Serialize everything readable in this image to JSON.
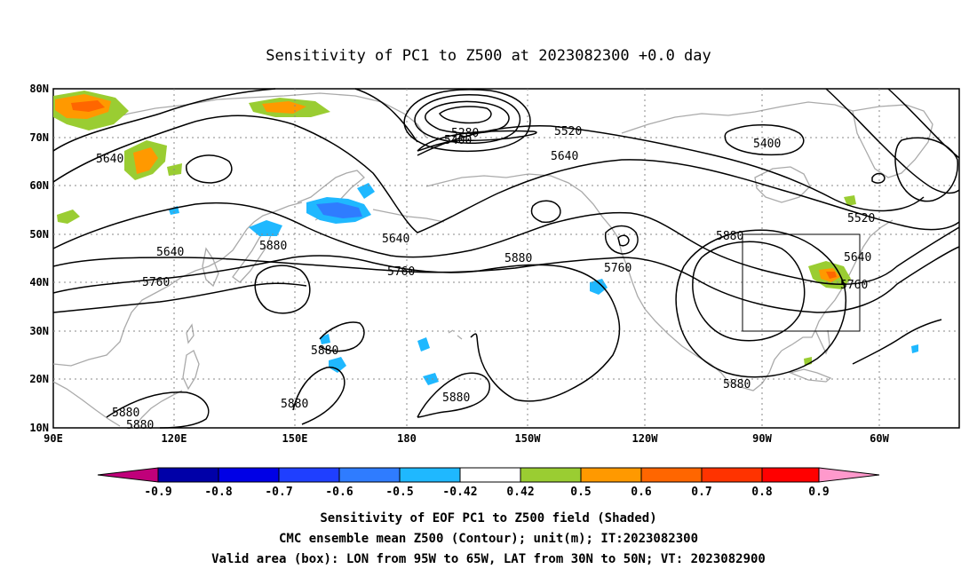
{
  "title": "Sensitivity of PC1 to Z500 at 2023082300 +0.0 day",
  "map": {
    "lat_labels": [
      "80N",
      "70N",
      "60N",
      "50N",
      "40N",
      "30N",
      "20N",
      "10N"
    ],
    "lon_labels": [
      "90E",
      "120E",
      "150E",
      "180",
      "150W",
      "120W",
      "90W",
      "60W"
    ],
    "lon_range": [
      "90E",
      "45W"
    ],
    "lat_range": [
      "10N",
      "80N"
    ],
    "grid": "dotted",
    "contour_labels": [
      "5640",
      "5640",
      "5760",
      "5880",
      "5880",
      "5880",
      "5880",
      "5880",
      "5880",
      "5640",
      "5760",
      "5880",
      "5280",
      "5400",
      "5520",
      "5640",
      "5400",
      "5880",
      "5760",
      "5520",
      "5640",
      "5760",
      "5880"
    ],
    "valid_box": {
      "lon": [
        "95W",
        "65W"
      ],
      "lat": [
        "30N",
        "50N"
      ]
    }
  },
  "colorbar": {
    "labels": [
      "-0.9",
      "-0.8",
      "-0.7",
      "-0.6",
      "-0.5",
      "-0.42",
      "0.42",
      "0.5",
      "0.6",
      "0.7",
      "0.8",
      "0.9"
    ],
    "colors": [
      "#c0007a",
      "#0000a8",
      "#0000e6",
      "#1f3fff",
      "#2f7cff",
      "#1fb8ff",
      "#ffffff",
      "#9acd32",
      "#ff9900",
      "#ff6600",
      "#ff3300",
      "#ff0000",
      "#ff99cc"
    ]
  },
  "captions": {
    "line1": "Sensitivity of EOF PC1 to Z500 field (Shaded)",
    "line2": "CMC ensemble mean Z500 (Contour); unit(m); IT:2023082300",
    "line3": "Valid area (box): LON from 95W to 65W, LAT from 30N to 50N; VT: 2023082900"
  }
}
